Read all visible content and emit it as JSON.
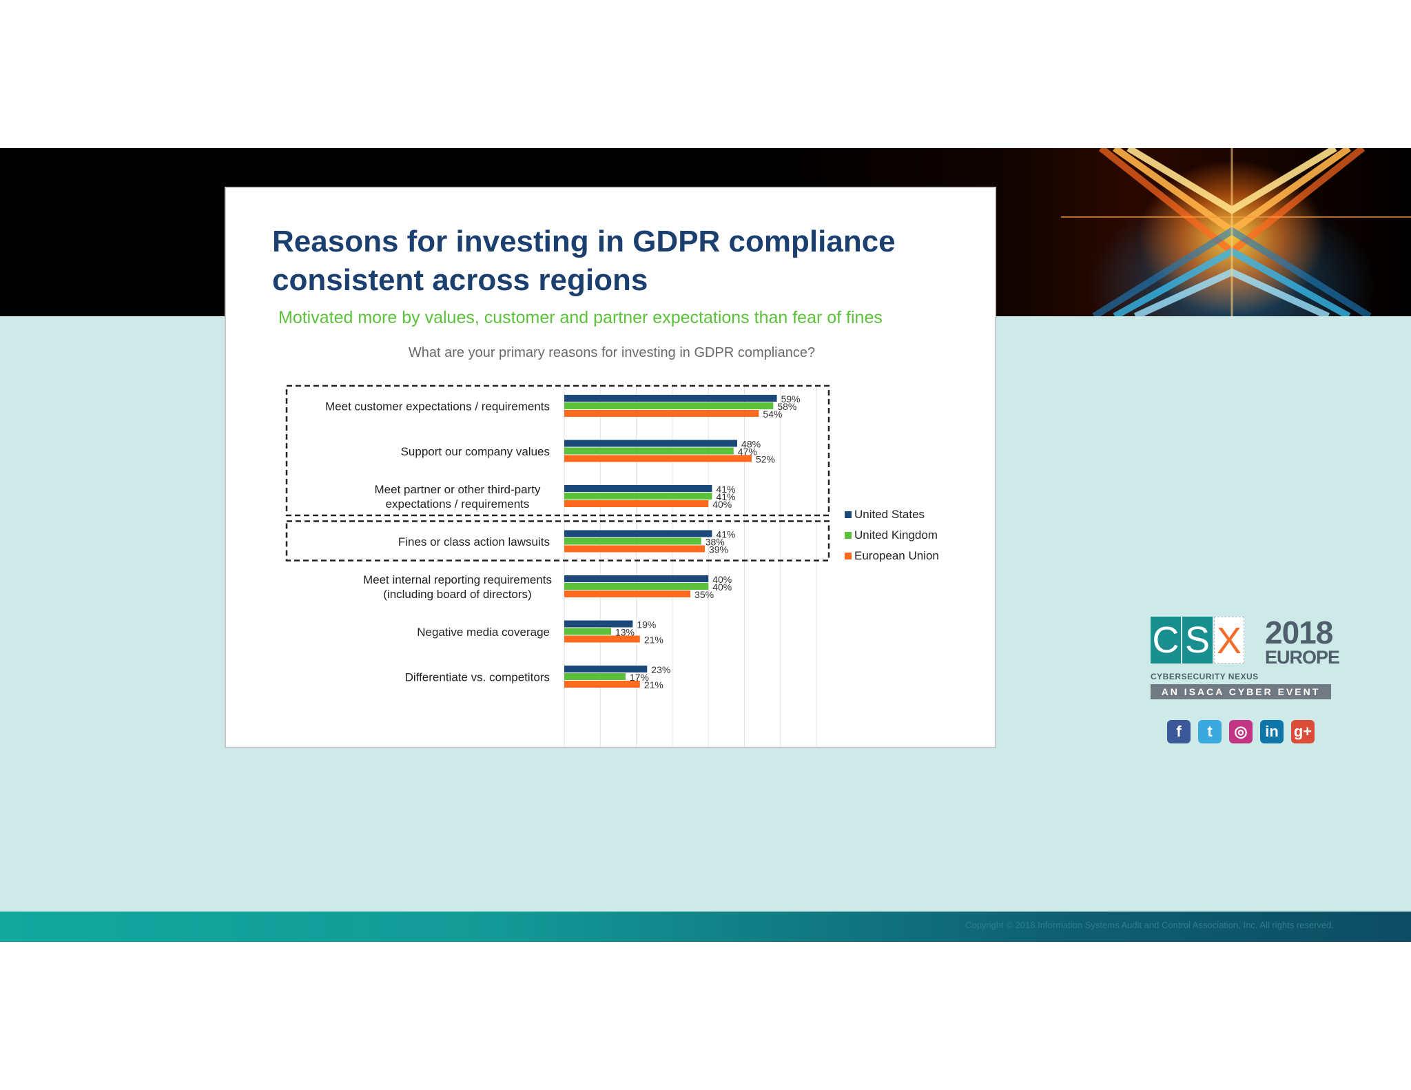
{
  "chart_data": {
    "type": "bar",
    "orientation": "horizontal",
    "title": "Reasons for investing in GDPR compliance consistent across regions",
    "subtitle": "Motivated more by values, customer and partner expectations than fear of fines",
    "question": "What are your primary reasons for investing in GDPR compliance?",
    "categories": [
      "Meet customer expectations / requirements",
      "Support our company values",
      "Meet partner or other third-party expectations / requirements",
      "Fines or class action lawsuits",
      "Meet internal reporting requirements (including board of directors)",
      "Negative media coverage",
      "Differentiate vs. competitors"
    ],
    "category_lines": [
      [
        "Meet customer expectations / requirements"
      ],
      [
        "Support our company values"
      ],
      [
        "Meet partner or other third-party",
        "expectations / requirements"
      ],
      [
        "Fines or class action lawsuits"
      ],
      [
        "Meet internal reporting requirements",
        "(including board of directors)"
      ],
      [
        "Negative media coverage"
      ],
      [
        "Differentiate vs. competitors"
      ]
    ],
    "series": [
      {
        "name": "United States",
        "color": "#1b4a7a",
        "values": [
          59,
          48,
          41,
          41,
          40,
          19,
          23
        ]
      },
      {
        "name": "United Kingdom",
        "color": "#5cc13a",
        "values": [
          58,
          47,
          41,
          38,
          40,
          13,
          17
        ]
      },
      {
        "name": "European Union",
        "color": "#ff6a1f",
        "values": [
          54,
          52,
          40,
          39,
          35,
          21,
          21
        ]
      }
    ],
    "x_ticks": [
      "0%",
      "10%",
      "20%",
      "30%",
      "40%",
      "50%",
      "60%",
      "70%"
    ],
    "xlim": [
      0,
      70
    ],
    "grid": true,
    "legend_position": "right",
    "highlight_groups": [
      [
        0,
        2
      ],
      [
        3,
        3
      ]
    ]
  },
  "footer": {
    "copyright": "Copyright © 2018 Information Systems Audit and Control Association, Inc. All rights reserved."
  },
  "logo": {
    "letters": [
      "C",
      "S",
      "X"
    ],
    "year": "2018",
    "region": "EUROPE",
    "tagline": "CYBERSECURITY NEXUS",
    "event": "AN ISACA CYBER EVENT"
  },
  "social": [
    {
      "icon": "facebook-icon",
      "glyph": "f",
      "color": "#3b5998"
    },
    {
      "icon": "twitter-icon",
      "glyph": "t",
      "color": "#39a9e0"
    },
    {
      "icon": "instagram-icon",
      "glyph": "◎",
      "color": "#c13584"
    },
    {
      "icon": "linkedin-icon",
      "glyph": "in",
      "color": "#0e76a8"
    },
    {
      "icon": "google-plus-icon",
      "glyph": "g+",
      "color": "#dd4b39"
    }
  ]
}
